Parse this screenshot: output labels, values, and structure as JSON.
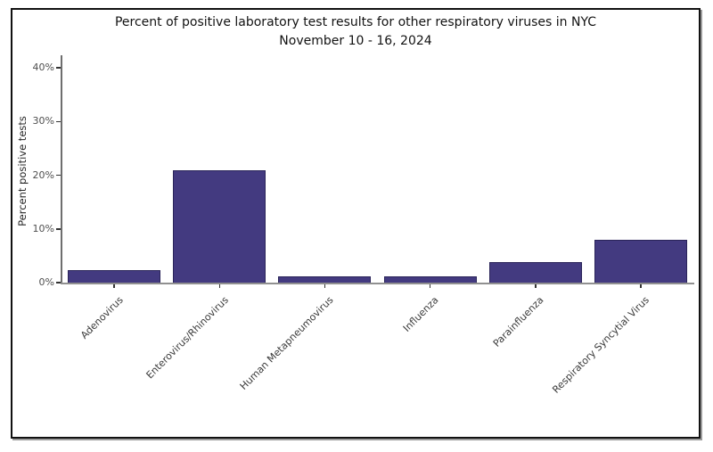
{
  "chart_data": {
    "type": "bar",
    "title": "Percent of positive laboratory test results for other respiratory viruses in NYC",
    "subtitle": "November 10 - 16, 2024",
    "categories": [
      "Adenovirus",
      "Enterovirus/Rhinovirus",
      "Human Metapneumovirus",
      "Influenza",
      "Parainfluenza",
      "Respiratory Syncytial Virus"
    ],
    "values": [
      2.4,
      21.0,
      1.1,
      1.1,
      3.9,
      7.9
    ],
    "xlabel": "",
    "ylabel": "Percent positive tests",
    "ylim": [
      0,
      42
    ],
    "ytick_values": [
      0,
      10,
      20,
      30,
      40
    ],
    "ytick_labels": [
      "0%",
      "10%",
      "20%",
      "30%",
      "40%"
    ],
    "grid": false,
    "legend": "none",
    "x_tick_rotation_deg": 45,
    "colors": {
      "bar_fill": "#433a80",
      "bar_edge": "#2a2459",
      "title_text": "#121212",
      "tick_text": "#4f4f4f",
      "axis_spine": "#6e6e6e",
      "baseline": "#909090",
      "figure_border": "#111111"
    }
  }
}
